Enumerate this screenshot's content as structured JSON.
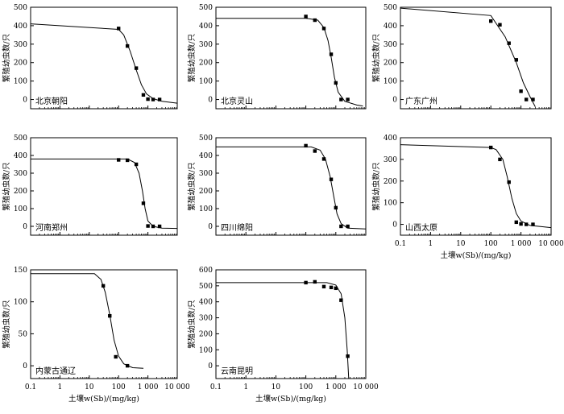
{
  "chart_data": [
    {
      "type": "scatter",
      "location_label": "北京朝阳",
      "ylabel": "繁殖幼虫数/只",
      "xlabel": "",
      "ylim": [
        -50,
        500
      ],
      "yticks": [
        0,
        100,
        200,
        300,
        400,
        500
      ],
      "xscale": "log",
      "xlim": [
        0.1,
        10000
      ],
      "xticks": [],
      "points": [
        [
          100,
          385
        ],
        [
          200,
          290
        ],
        [
          400,
          170
        ],
        [
          700,
          25
        ],
        [
          1000,
          2
        ],
        [
          1500,
          0
        ],
        [
          2500,
          0
        ]
      ],
      "curve": [
        [
          0.1,
          410
        ],
        [
          100,
          380
        ],
        [
          150,
          350
        ],
        [
          250,
          260
        ],
        [
          400,
          160
        ],
        [
          600,
          80
        ],
        [
          900,
          30
        ],
        [
          1500,
          5
        ],
        [
          3000,
          -10
        ],
        [
          10000,
          -20
        ]
      ]
    },
    {
      "type": "scatter",
      "location_label": "北京灵山",
      "ylabel": "繁殖幼虫数/只",
      "xlabel": "",
      "ylim": [
        -50,
        500
      ],
      "yticks": [
        0,
        100,
        200,
        300,
        400,
        500
      ],
      "xscale": "log",
      "xlim": [
        0.1,
        10000
      ],
      "xticks": [],
      "points": [
        [
          100,
          450
        ],
        [
          200,
          430
        ],
        [
          400,
          385
        ],
        [
          700,
          245
        ],
        [
          1000,
          90
        ],
        [
          1500,
          0
        ],
        [
          2500,
          0
        ]
      ],
      "curve": [
        [
          0.1,
          440
        ],
        [
          100,
          440
        ],
        [
          250,
          430
        ],
        [
          400,
          390
        ],
        [
          550,
          320
        ],
        [
          700,
          230
        ],
        [
          900,
          120
        ],
        [
          1200,
          40
        ],
        [
          2000,
          -10
        ],
        [
          5000,
          -30
        ],
        [
          8000,
          -35
        ]
      ]
    },
    {
      "type": "scatter",
      "location_label": "广东广州",
      "ylabel": "繁殖幼虫数/只",
      "xlabel": "",
      "ylim": [
        -50,
        500
      ],
      "yticks": [
        0,
        100,
        200,
        300,
        400,
        500
      ],
      "xscale": "log",
      "xlim": [
        0.1,
        10000
      ],
      "xticks": [],
      "points": [
        [
          100,
          425
        ],
        [
          200,
          405
        ],
        [
          400,
          305
        ],
        [
          700,
          215
        ],
        [
          1000,
          45
        ],
        [
          1500,
          0
        ],
        [
          2500,
          0
        ]
      ],
      "curve": [
        [
          0.1,
          495
        ],
        [
          100,
          455
        ],
        [
          300,
          340
        ],
        [
          700,
          200
        ],
        [
          1200,
          90
        ],
        [
          2000,
          15
        ],
        [
          3000,
          -40
        ]
      ]
    },
    {
      "type": "scatter",
      "location_label": "河南郑州",
      "ylabel": "繁殖幼虫数/只",
      "xlabel": "",
      "ylim": [
        -50,
        500
      ],
      "yticks": [
        0,
        100,
        200,
        300,
        400,
        500
      ],
      "xscale": "log",
      "xlim": [
        0.1,
        10000
      ],
      "xticks": [],
      "points": [
        [
          100,
          375
        ],
        [
          200,
          373
        ],
        [
          400,
          350
        ],
        [
          700,
          130
        ],
        [
          1000,
          2
        ],
        [
          1500,
          0
        ],
        [
          2500,
          0
        ]
      ],
      "curve": [
        [
          0.1,
          380
        ],
        [
          200,
          380
        ],
        [
          350,
          360
        ],
        [
          500,
          300
        ],
        [
          650,
          200
        ],
        [
          800,
          100
        ],
        [
          1000,
          30
        ],
        [
          1500,
          0
        ],
        [
          3000,
          -10
        ],
        [
          10000,
          -12
        ]
      ]
    },
    {
      "type": "scatter",
      "location_label": "四川绵阳",
      "ylabel": "繁殖幼虫数/只",
      "xlabel": "",
      "ylim": [
        -50,
        500
      ],
      "yticks": [
        0,
        100,
        200,
        300,
        400,
        500
      ],
      "xscale": "log",
      "xlim": [
        0.1,
        10000
      ],
      "xticks": [],
      "points": [
        [
          100,
          455
        ],
        [
          200,
          425
        ],
        [
          400,
          380
        ],
        [
          700,
          265
        ],
        [
          1000,
          105
        ],
        [
          1500,
          0
        ],
        [
          2500,
          0
        ]
      ],
      "curve": [
        [
          0.1,
          448
        ],
        [
          150,
          448
        ],
        [
          300,
          430
        ],
        [
          450,
          380
        ],
        [
          650,
          280
        ],
        [
          850,
          170
        ],
        [
          1100,
          70
        ],
        [
          1500,
          15
        ],
        [
          2500,
          -10
        ],
        [
          10000,
          -15
        ]
      ]
    },
    {
      "type": "scatter",
      "location_label": "山西太原",
      "ylabel": "繁殖幼虫数/只",
      "xlabel": "土壤w(Sb)/(mg/kg)",
      "ylim": [
        -50,
        400
      ],
      "yticks": [
        0,
        100,
        200,
        300,
        400
      ],
      "xscale": "log",
      "xlim": [
        0.1,
        10000
      ],
      "xticks": [
        "0.1",
        "1",
        "10",
        "100",
        "1 000",
        "10 000"
      ],
      "points": [
        [
          100,
          355
        ],
        [
          200,
          300
        ],
        [
          400,
          195
        ],
        [
          700,
          10
        ],
        [
          1000,
          2
        ],
        [
          1500,
          0
        ],
        [
          2500,
          0
        ]
      ],
      "curve": [
        [
          0.1,
          368
        ],
        [
          100,
          355
        ],
        [
          150,
          345
        ],
        [
          250,
          300
        ],
        [
          350,
          220
        ],
        [
          500,
          120
        ],
        [
          700,
          50
        ],
        [
          1000,
          15
        ],
        [
          2000,
          -5
        ],
        [
          10000,
          -15
        ]
      ]
    },
    {
      "type": "scatter",
      "location_label": "内蒙古通辽",
      "ylabel": "繁殖幼虫数/只",
      "xlabel": "土壤w(Sb)/(mg/kg)",
      "ylim": [
        -20,
        150
      ],
      "yticks": [
        0,
        50,
        100,
        150
      ],
      "xscale": "log",
      "xlim": [
        0.1,
        10000
      ],
      "xticks": [
        "0.1",
        "1",
        "10",
        "100",
        "1 000",
        "10 000"
      ],
      "points": [
        [
          30,
          125
        ],
        [
          50,
          78
        ],
        [
          80,
          14
        ],
        [
          200,
          0
        ]
      ],
      "curve": [
        [
          0.1,
          144
        ],
        [
          15,
          144
        ],
        [
          25,
          135
        ],
        [
          35,
          115
        ],
        [
          50,
          80
        ],
        [
          70,
          40
        ],
        [
          100,
          15
        ],
        [
          150,
          3
        ],
        [
          300,
          -3
        ],
        [
          700,
          -4
        ]
      ]
    },
    {
      "type": "scatter",
      "location_label": "云南昆明",
      "ylabel": "繁殖幼虫数/只",
      "xlabel": "土壤w(Sb)/(mg/kg)",
      "ylim": [
        -80,
        600
      ],
      "yticks": [
        0,
        100,
        200,
        300,
        400,
        500,
        600
      ],
      "xscale": "log",
      "xlim": [
        0.1,
        10000
      ],
      "xticks": [
        "0.1",
        "1",
        "10",
        "100",
        "1 000",
        "10 000"
      ],
      "points": [
        [
          100,
          520
        ],
        [
          200,
          525
        ],
        [
          400,
          495
        ],
        [
          700,
          490
        ],
        [
          1000,
          485
        ],
        [
          1500,
          410
        ],
        [
          2500,
          60
        ]
      ],
      "curve": [
        [
          0.1,
          520
        ],
        [
          500,
          520
        ],
        [
          1000,
          505
        ],
        [
          1500,
          450
        ],
        [
          2000,
          300
        ],
        [
          2400,
          100
        ],
        [
          2700,
          -80
        ]
      ]
    }
  ]
}
